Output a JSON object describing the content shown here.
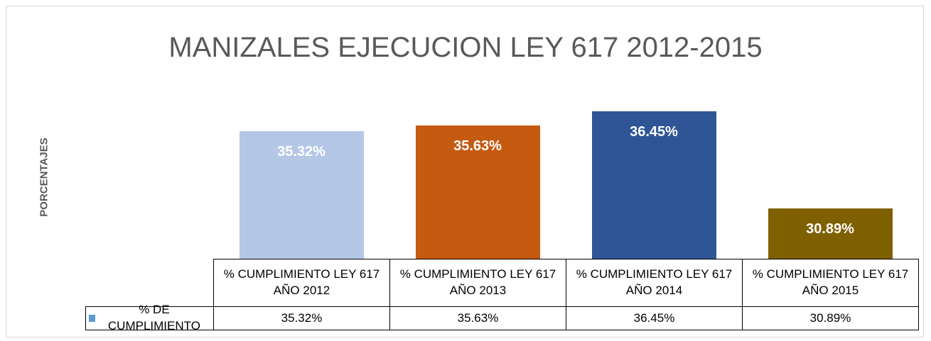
{
  "chart_data": {
    "type": "bar",
    "title": "MANIZALES EJECUCION LEY 617 2012-2015",
    "y_label": "PORCENTAJES",
    "categories": [
      "% CUMPLIMIENTO LEY 617 AÑO 2012",
      "% CUMPLIMIENTO LEY 617 AÑO 2013",
      "% CUMPLIMIENTO LEY 617 AÑO 2014",
      "% CUMPLIMIENTO LEY 617 AÑO 2015"
    ],
    "series": [
      {
        "name": "% DE CUMPLIMIENTO",
        "color": "#5b9bd5",
        "bar_colors": [
          "#b4c7e7",
          "#c55a11",
          "#2f5597",
          "#7f6000"
        ],
        "values": [
          35.32,
          35.63,
          36.45,
          30.89
        ],
        "value_labels": [
          "35.32%",
          "35.63%",
          "36.45%",
          "30.89%"
        ]
      }
    ],
    "ylim": [
      28,
      38
    ],
    "data_table": true
  }
}
